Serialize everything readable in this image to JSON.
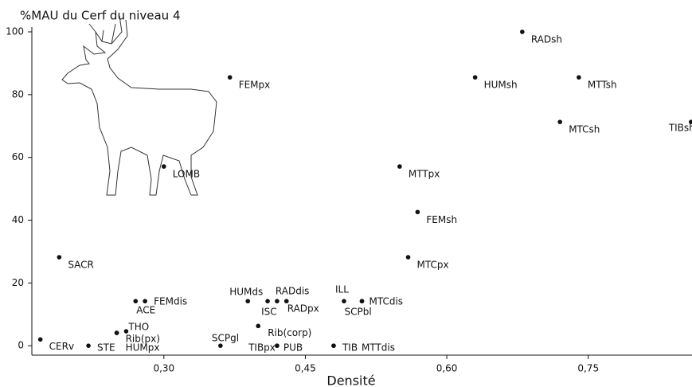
{
  "chart_data": {
    "type": "scatter",
    "title": "%MAU du Cerf du niveau 4",
    "x_label": "Densité",
    "xlim": [
      0.16,
      0.86
    ],
    "ylim": [
      -3,
      100
    ],
    "xticks": [
      {
        "value": 0.3,
        "label": "0,30"
      },
      {
        "value": 0.45,
        "label": "0,45"
      },
      {
        "value": 0.6,
        "label": "0,60"
      },
      {
        "value": 0.75,
        "label": "0,75"
      }
    ],
    "yticks": [
      0,
      20,
      40,
      60,
      80,
      100
    ],
    "color": "#111111",
    "point_labels": [
      "RADsh",
      "HUMsh",
      "MTTsh",
      "MTCsh",
      "TIBsh",
      "FEMpx",
      "LOMB",
      "MTTpx",
      "FEMsh",
      "SACR",
      "MTCpx",
      "HUMds",
      "ISC",
      "RADdis",
      "RADpx",
      "ILL",
      "MTCdis",
      "SCPbl",
      "ACE",
      "FEMdis",
      "Rib(corp)",
      "THO",
      "Rib(px)",
      "HUMpx",
      "CERv",
      "STE",
      "SCPgl",
      "TIBpx",
      "PUB",
      "TIB",
      "MTTdis"
    ],
    "x": [
      0.68,
      0.63,
      0.74,
      0.72,
      0.859,
      0.37,
      0.3,
      0.55,
      0.569,
      0.189,
      0.559,
      0.389,
      0.41,
      0.42,
      0.43,
      0.491,
      0.51,
      0.51,
      0.27,
      0.28,
      0.4,
      0.26,
      0.25,
      0.25,
      0.169,
      0.22,
      0.36,
      0.42,
      0.42,
      0.48,
      0.48
    ],
    "values": [
      100,
      85.5,
      85.5,
      71.3,
      71.3,
      85.5,
      57.1,
      57.1,
      42.6,
      28.2,
      28.2,
      14.2,
      14.2,
      14.2,
      14.2,
      14.2,
      14.2,
      14.2,
      14.2,
      14.2,
      6.3,
      4.6,
      4.1,
      4.1,
      2.0,
      0,
      0,
      0,
      0,
      0,
      0
    ]
  }
}
